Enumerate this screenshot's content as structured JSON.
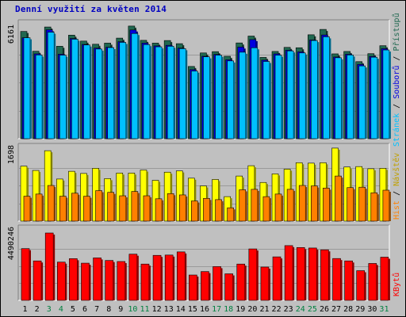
{
  "title": "Denní využití za květen 2014",
  "legend_top": {
    "s1": "Přístupů",
    "sep1": " / ",
    "s2": "Souborů",
    "sep2": " / ",
    "s3": "Stránek"
  },
  "legend_mid": {
    "s1": "Návštěv",
    "sep": " / ",
    "s2": "Hist"
  },
  "legend_bot": {
    "s1": "KBytů"
  },
  "colors": {
    "hits": "#206850",
    "files": "#0000e0",
    "pages": "#00c0ff",
    "visits": "#ffff00",
    "sites": "#ff8000",
    "kbytes": "#ff0000",
    "day_normal": "#000000",
    "day_weekend": "#008040"
  },
  "chart_data": [
    {
      "type": "bar",
      "panel": "top",
      "max_label": "6161",
      "ylim": [
        0,
        6161
      ],
      "x": [
        1,
        2,
        3,
        4,
        5,
        6,
        7,
        8,
        9,
        10,
        11,
        12,
        13,
        14,
        15,
        16,
        17,
        18,
        19,
        20,
        21,
        22,
        23,
        24,
        25,
        26,
        27,
        28,
        29,
        30,
        31
      ],
      "weekend_days": [
        3,
        4,
        10,
        11,
        17,
        18,
        24,
        25,
        31
      ],
      "series": [
        {
          "name": "Přístupů",
          "values": [
            5790,
            4720,
            6030,
            4990,
            5590,
            5270,
            5100,
            5160,
            5430,
            6080,
            5310,
            5160,
            5300,
            5130,
            3900,
            4630,
            4700,
            4450,
            5170,
            5540,
            4390,
            4710,
            4930,
            4910,
            5610,
            5900,
            4580,
            4710,
            4160,
            4590,
            5020
          ]
        },
        {
          "name": "Souborů",
          "values": [
            5450,
            4580,
            5880,
            4560,
            5410,
            5090,
            4890,
            4940,
            5240,
            5870,
            5160,
            5010,
            5040,
            4890,
            3730,
            4450,
            4550,
            4260,
            4950,
            5350,
            4240,
            4580,
            4780,
            4690,
            5330,
            5600,
            4410,
            4560,
            4010,
            4440,
            4860
          ]
        },
        {
          "name": "Stránek",
          "values": [
            5450,
            4520,
            5750,
            4510,
            5370,
            5060,
            4840,
            4920,
            5200,
            5680,
            5080,
            4960,
            4990,
            4860,
            3650,
            4420,
            4510,
            4200,
            4670,
            4910,
            4170,
            4510,
            4740,
            4630,
            5300,
            5500,
            4370,
            4520,
            3930,
            4400,
            4790
          ]
        }
      ]
    },
    {
      "type": "bar",
      "panel": "middle",
      "max_label": "1698",
      "ylim": [
        0,
        1698
      ],
      "x": [
        1,
        2,
        3,
        4,
        5,
        6,
        7,
        8,
        9,
        10,
        11,
        12,
        13,
        14,
        15,
        16,
        17,
        18,
        19,
        20,
        21,
        22,
        23,
        24,
        25,
        26,
        27,
        28,
        29,
        30,
        31
      ],
      "series": [
        {
          "name": "Návštěv",
          "values": [
            1280,
            1180,
            1640,
            980,
            1160,
            1110,
            1230,
            990,
            1120,
            1120,
            1190,
            950,
            1140,
            1170,
            1000,
            820,
            970,
            570,
            1050,
            1290,
            900,
            1100,
            1210,
            1360,
            1350,
            1360,
            1700,
            1260,
            1270,
            1220,
            1230
          ]
        },
        {
          "name": "Hist",
          "values": [
            580,
            630,
            830,
            580,
            650,
            580,
            710,
            670,
            590,
            690,
            590,
            520,
            640,
            610,
            470,
            530,
            500,
            310,
            730,
            740,
            570,
            630,
            740,
            830,
            820,
            770,
            1050,
            780,
            790,
            660,
            720
          ]
        }
      ]
    },
    {
      "type": "bar",
      "panel": "bottom",
      "max_label": "4490246",
      "ylim": [
        0,
        4490246
      ],
      "x": [
        1,
        2,
        3,
        4,
        5,
        6,
        7,
        8,
        9,
        10,
        11,
        12,
        13,
        14,
        15,
        16,
        17,
        18,
        19,
        20,
        21,
        22,
        23,
        24,
        25,
        26,
        27,
        28,
        29,
        30,
        31
      ],
      "series": [
        {
          "name": "KBytů",
          "values": [
            3450000,
            2630000,
            4490246,
            2550000,
            2780000,
            2480000,
            2830000,
            2660000,
            2590000,
            3080000,
            2420000,
            3000000,
            3020000,
            3230000,
            1690000,
            1920000,
            2250000,
            1770000,
            2420000,
            3430000,
            2220000,
            2900000,
            3650000,
            3520000,
            3490000,
            3370000,
            2790000,
            2630000,
            1980000,
            2460000,
            2880000
          ]
        }
      ]
    }
  ]
}
